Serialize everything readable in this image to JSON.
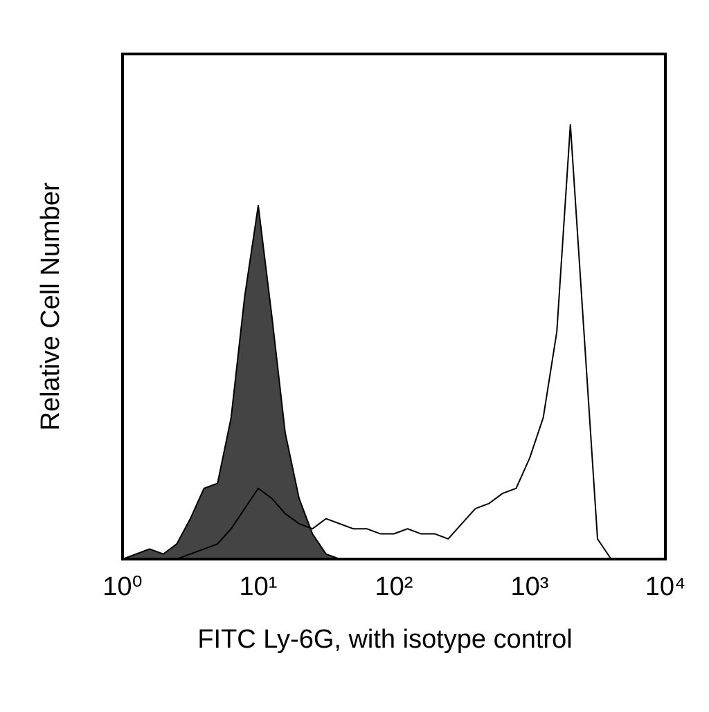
{
  "chart_data": {
    "type": "histogram-overlay",
    "x_label": "FITC Ly-6G, with isotype control",
    "y_label": "Relative Cell Number",
    "x_scale": "log",
    "xlim": [
      1,
      10000
    ],
    "ylim": [
      0,
      100
    ],
    "xticks": [
      {
        "value": 1,
        "label": "10⁰"
      },
      {
        "value": 10,
        "label": "10¹"
      },
      {
        "value": 100,
        "label": "10²"
      },
      {
        "value": 1000,
        "label": "10³"
      },
      {
        "value": 10000,
        "label": "10⁴"
      }
    ],
    "x": [
      1,
      1.26,
      1.58,
      2,
      2.51,
      3.16,
      3.98,
      5.01,
      6.31,
      7.94,
      10,
      12.6,
      15.8,
      20,
      25.1,
      31.6,
      39.8,
      50.1,
      63.1,
      79.4,
      100,
      126,
      158,
      200,
      251,
      316,
      398,
      501,
      631,
      794,
      1000,
      1259,
      1585,
      1995,
      2512,
      3162,
      3981
    ],
    "series": [
      {
        "color": "#444444",
        "filled": true,
        "values": [
          0,
          1,
          2,
          1,
          3,
          8,
          14,
          15,
          28,
          52,
          70,
          48,
          25,
          12,
          5,
          1,
          0,
          0,
          0,
          0,
          0,
          0,
          0,
          0,
          0,
          0,
          0,
          0,
          0,
          0,
          0,
          0,
          0,
          0,
          0,
          0,
          0
        ]
      },
      {
        "color": "#000000",
        "filled": false,
        "values": [
          0,
          0,
          0,
          0,
          0,
          1,
          2,
          3,
          6,
          10,
          14,
          12,
          9,
          7,
          6,
          8,
          7,
          6,
          6,
          5,
          5,
          6,
          5,
          5,
          4,
          7,
          10,
          11,
          13,
          14,
          20,
          28,
          45,
          86,
          45,
          4,
          0
        ]
      }
    ]
  }
}
